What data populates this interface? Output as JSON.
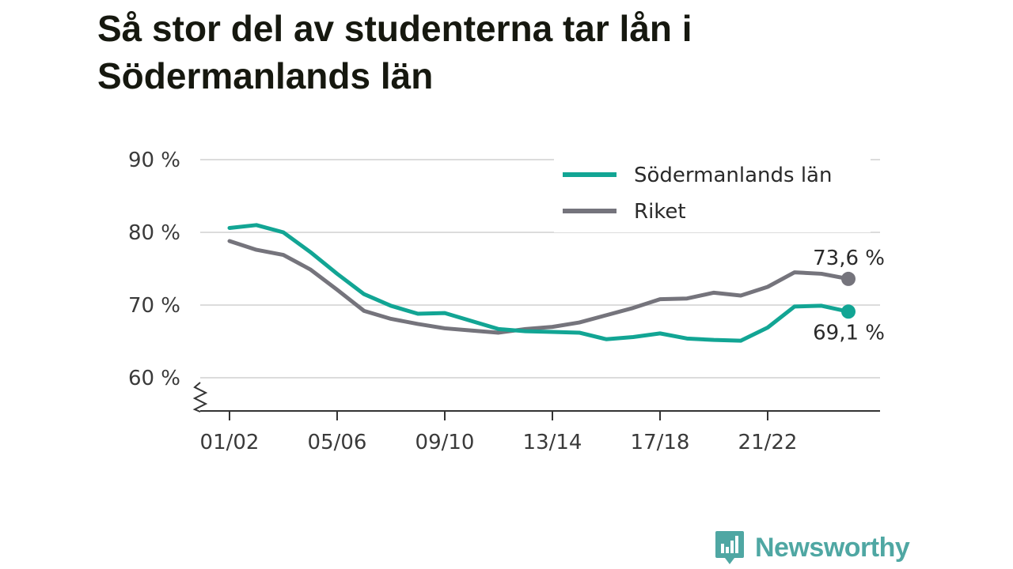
{
  "title": "Så stor del av studenterna tar lån i Södermanlands län",
  "brand": {
    "name": "Newsworthy",
    "icon": "newsworthy-logo-icon",
    "color": "#4fa7a3"
  },
  "chart_data": {
    "type": "line",
    "title": "Så stor del av studenterna tar lån i Södermanlands län",
    "xlabel": "",
    "ylabel": "",
    "ylim": [
      60,
      90
    ],
    "y_ticks": [
      60,
      70,
      80,
      90
    ],
    "y_tick_labels": [
      "60 %",
      "70 %",
      "80 %",
      "90 %"
    ],
    "y_axis_break": true,
    "x_tick_labels": [
      "01/02",
      "05/06",
      "09/10",
      "13/14",
      "17/18",
      "21/22"
    ],
    "x_tick_indices": [
      0,
      4,
      8,
      12,
      16,
      20
    ],
    "categories": [
      "01/02",
      "02/03",
      "03/04",
      "04/05",
      "05/06",
      "06/07",
      "07/08",
      "08/09",
      "09/10",
      "10/11",
      "11/12",
      "12/13",
      "13/14",
      "14/15",
      "15/16",
      "16/17",
      "17/18",
      "18/19",
      "19/20",
      "20/21",
      "21/22",
      "22/23",
      "23/24",
      "24/25"
    ],
    "grid": true,
    "legend_position": "top-right",
    "series": [
      {
        "name": "Södermanlands län",
        "color": "#12a594",
        "values": [
          80.6,
          81.0,
          80.0,
          77.3,
          74.3,
          71.5,
          69.9,
          68.8,
          68.9,
          67.8,
          66.7,
          66.4,
          66.3,
          66.2,
          65.3,
          65.6,
          66.1,
          65.4,
          65.2,
          65.1,
          66.9,
          69.8,
          69.9,
          69.1
        ],
        "end_label": "69,1 %"
      },
      {
        "name": "Riket",
        "color": "#75747c",
        "values": [
          78.8,
          77.6,
          76.9,
          74.9,
          72.1,
          69.2,
          68.1,
          67.4,
          66.8,
          66.5,
          66.2,
          66.7,
          67.0,
          67.6,
          68.6,
          69.6,
          70.8,
          70.9,
          71.7,
          71.3,
          72.5,
          74.5,
          74.3,
          73.6
        ],
        "end_label": "73,6 %"
      }
    ]
  }
}
